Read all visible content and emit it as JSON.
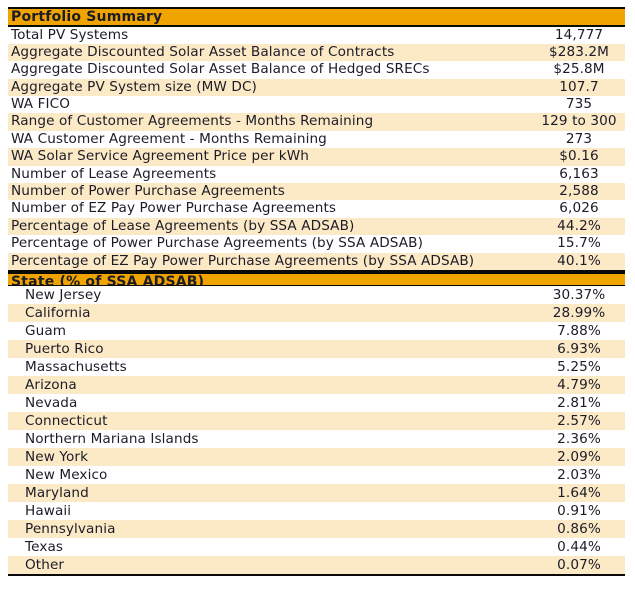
{
  "colors": {
    "accent": "#F0A402",
    "row_alt": "#FCE9C6",
    "text": "#1C1C28",
    "line": "#0A0A0A"
  },
  "portfolio_summary": {
    "title": "Portfolio Summary",
    "rows": [
      {
        "label": "Total PV Systems",
        "value": "14,777"
      },
      {
        "label": "Aggregate Discounted Solar Asset Balance of Contracts",
        "value": "$283.2M"
      },
      {
        "label": "Aggregate Discounted Solar Asset Balance of Hedged SRECs",
        "value": "$25.8M"
      },
      {
        "label": "Aggregate PV System size (MW DC)",
        "value": "107.7"
      },
      {
        "label": "WA FICO",
        "value": "735"
      },
      {
        "label": "Range of Customer Agreements - Months Remaining",
        "value": "129 to 300"
      },
      {
        "label": "WA Customer Agreement - Months Remaining",
        "value": "273"
      },
      {
        "label": "WA Solar Service Agreement Price per kWh",
        "value": "$0.16"
      },
      {
        "label": "Number of Lease Agreements",
        "value": "6,163"
      },
      {
        "label": "Number of Power Purchase Agreements",
        "value": "2,588"
      },
      {
        "label": "Number of EZ Pay Power Purchase Agreements",
        "value": "6,026"
      },
      {
        "label": "Percentage of Lease Agreements (by SSA ADSAB)",
        "value": "44.2%"
      },
      {
        "label": "Percentage of Power Purchase Agreements (by SSA ADSAB)",
        "value": "15.7%"
      },
      {
        "label": "Percentage of EZ Pay Power Purchase Agreements (by SSA ADSAB)",
        "value": "40.1%"
      }
    ]
  },
  "state_breakdown": {
    "title": "State (% of SSA ADSAB)",
    "rows": [
      {
        "label": "New Jersey",
        "value": "30.37%"
      },
      {
        "label": "California",
        "value": "28.99%"
      },
      {
        "label": "Guam",
        "value": "7.88%"
      },
      {
        "label": "Puerto Rico",
        "value": "6.93%"
      },
      {
        "label": "Massachusetts",
        "value": "5.25%"
      },
      {
        "label": "Arizona",
        "value": "4.79%"
      },
      {
        "label": "Nevada",
        "value": "2.81%"
      },
      {
        "label": "Connecticut",
        "value": "2.57%"
      },
      {
        "label": "Northern Mariana Islands",
        "value": "2.36%"
      },
      {
        "label": "New York",
        "value": "2.09%"
      },
      {
        "label": "New Mexico",
        "value": "2.03%"
      },
      {
        "label": "Maryland",
        "value": "1.64%"
      },
      {
        "label": "Hawaii",
        "value": "0.91%"
      },
      {
        "label": "Pennsylvania",
        "value": "0.86%"
      },
      {
        "label": "Texas",
        "value": "0.44%"
      },
      {
        "label": "Other",
        "value": "0.07%"
      }
    ]
  }
}
